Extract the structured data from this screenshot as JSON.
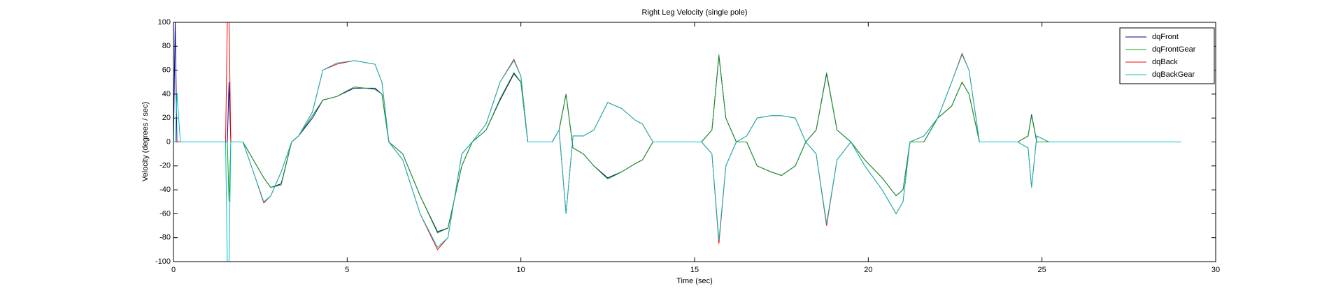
{
  "chart_data": {
    "type": "line",
    "title": "Right Leg Velocity (single pole)",
    "x_label": "Time (sec)",
    "y_label": "Velocity (degrees / sec)",
    "x": [
      0,
      0.05,
      0.1,
      0.2,
      1.5,
      1.55,
      1.6,
      1.65,
      1.8,
      2.0,
      2.3,
      2.6,
      2.8,
      3.1,
      3.4,
      3.6,
      4.0,
      4.3,
      4.7,
      5.2,
      5.8,
      6.0,
      6.2,
      6.6,
      7.1,
      7.6,
      7.9,
      8.3,
      8.6,
      9.0,
      9.4,
      9.8,
      10.0,
      10.2,
      10.9,
      11.1,
      11.3,
      11.5,
      11.8,
      12.1,
      12.5,
      12.9,
      13.3,
      13.5,
      13.8,
      14.7,
      15.2,
      15.5,
      15.7,
      15.9,
      16.2,
      16.5,
      16.8,
      17.2,
      17.5,
      17.9,
      18.2,
      18.5,
      18.8,
      19.1,
      19.5,
      19.9,
      20.4,
      20.8,
      21.0,
      21.2,
      21.6,
      22.0,
      22.4,
      22.7,
      22.9,
      23.2,
      24.3,
      24.6,
      24.7,
      24.85,
      25.2,
      29.0
    ],
    "series": [
      {
        "name": "dqFront",
        "color": "#00008b",
        "values": [
          0,
          100,
          0,
          0,
          0,
          0,
          50,
          0,
          0,
          0,
          -15,
          -30,
          -38,
          -35,
          0,
          5,
          20,
          35,
          38,
          45,
          45,
          40,
          0,
          -10,
          -45,
          -75,
          -72,
          -20,
          0,
          10,
          35,
          57,
          50,
          0,
          0,
          10,
          40,
          -5,
          -10,
          -20,
          -30,
          -25,
          -18,
          -15,
          0,
          0,
          0,
          10,
          72,
          20,
          0,
          0,
          -20,
          -25,
          -28,
          -20,
          0,
          10,
          57,
          10,
          0,
          -15,
          -30,
          -45,
          -40,
          0,
          0,
          20,
          30,
          50,
          40,
          0,
          0,
          5,
          23,
          0,
          0,
          0
        ]
      },
      {
        "name": "dqFrontGear",
        "color": "#1a9a1a",
        "values": [
          0,
          0,
          0,
          0,
          0,
          0,
          -50,
          0,
          0,
          0,
          -15,
          -30,
          -38,
          -36,
          0,
          5,
          22,
          35,
          38,
          46,
          44,
          40,
          0,
          -10,
          -45,
          -76,
          -72,
          -20,
          0,
          10,
          36,
          58,
          50,
          0,
          0,
          10,
          40,
          -5,
          -10,
          -20,
          -31,
          -25,
          -18,
          -15,
          0,
          0,
          0,
          10,
          73,
          20,
          0,
          0,
          -20,
          -25,
          -28,
          -20,
          0,
          10,
          58,
          10,
          0,
          -15,
          -30,
          -45,
          -40,
          0,
          0,
          20,
          30,
          50,
          40,
          0,
          0,
          5,
          22,
          0,
          0,
          0
        ]
      },
      {
        "name": "dqBack",
        "color": "#ff0000",
        "values": [
          0,
          0,
          0,
          0,
          0,
          100,
          100,
          0,
          0,
          0,
          -25,
          -51,
          -45,
          -25,
          0,
          5,
          25,
          60,
          65,
          68,
          65,
          50,
          0,
          -15,
          -60,
          -90,
          -80,
          -10,
          0,
          15,
          50,
          69,
          55,
          0,
          0,
          10,
          -60,
          5,
          5,
          10,
          33,
          28,
          18,
          15,
          0,
          0,
          0,
          -10,
          -85,
          -20,
          0,
          5,
          20,
          22,
          22,
          20,
          0,
          -10,
          -70,
          -15,
          0,
          -20,
          -40,
          -60,
          -50,
          0,
          5,
          20,
          50,
          74,
          60,
          0,
          0,
          -5,
          -38,
          5,
          0,
          0
        ]
      },
      {
        "name": "dqBackGear",
        "color": "#00bfbf",
        "values": [
          0,
          0,
          40,
          0,
          0,
          -100,
          -100,
          0,
          0,
          0,
          -25,
          -50,
          -45,
          -25,
          0,
          5,
          25,
          60,
          66,
          68,
          65,
          50,
          0,
          -15,
          -60,
          -88,
          -80,
          -10,
          0,
          15,
          50,
          68,
          55,
          0,
          0,
          10,
          -60,
          5,
          5,
          10,
          33,
          28,
          18,
          15,
          0,
          0,
          0,
          -10,
          -82,
          -20,
          0,
          5,
          20,
          22,
          22,
          20,
          0,
          -10,
          -68,
          -15,
          0,
          -20,
          -40,
          -60,
          -50,
          0,
          5,
          20,
          50,
          73,
          60,
          0,
          0,
          -5,
          -38,
          5,
          0,
          0
        ]
      }
    ],
    "xlim": [
      0,
      30
    ],
    "xticks": [
      0,
      5,
      10,
      15,
      20,
      25,
      30
    ],
    "ylim": [
      -100,
      100
    ],
    "yticks": [
      -100,
      -80,
      -60,
      -40,
      -20,
      0,
      20,
      40,
      60,
      80,
      100
    ],
    "grid": false,
    "legend": "upper right"
  }
}
